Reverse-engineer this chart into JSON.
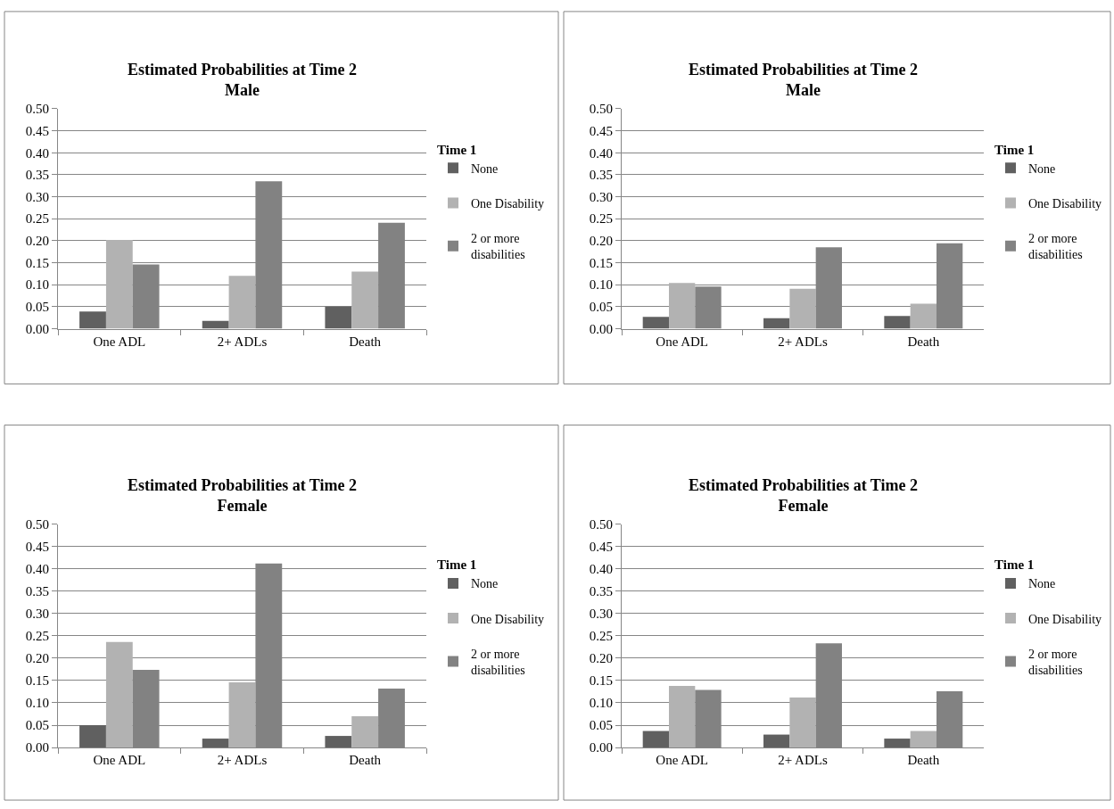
{
  "chart_data": [
    {
      "type": "bar",
      "title": "Estimated Probabilities at Time 2",
      "subtitle": "Male",
      "categories": [
        "One ADL",
        "2+ ADLs",
        "Death"
      ],
      "legend_title": "Time 1",
      "legend": "right",
      "grid": "y",
      "ylim": [
        0,
        0.5
      ],
      "yticks": [
        {
          "value": 0,
          "label": "0.00"
        },
        {
          "value": 0.05,
          "label": "0.05"
        },
        {
          "value": 0.1,
          "label": "0.10"
        },
        {
          "value": 0.15,
          "label": "0.15"
        },
        {
          "value": 0.2,
          "label": "0.20"
        },
        {
          "value": 0.25,
          "label": "0.25"
        },
        {
          "value": 0.3,
          "label": "0.30"
        },
        {
          "value": 0.35,
          "label": "0.35"
        },
        {
          "value": 0.4,
          "label": "0.40"
        },
        {
          "value": 0.45,
          "label": "0.45"
        },
        {
          "value": 0.5,
          "label": "0.50"
        }
      ],
      "series": [
        {
          "name": "None",
          "color": "#606060",
          "values": [
            0.039,
            0.018,
            0.05
          ]
        },
        {
          "name": "One Disability",
          "color": "#b2b2b2",
          "values": [
            0.202,
            0.12,
            0.13
          ]
        },
        {
          "name": "2 or more disabilities",
          "color": "#828282",
          "values": [
            0.146,
            0.335,
            0.241
          ]
        }
      ]
    },
    {
      "type": "bar",
      "title": "Estimated Probabilities at Time 2",
      "subtitle": "Male",
      "categories": [
        "One ADL",
        "2+ ADLs",
        "Death"
      ],
      "legend_title": "Time 1",
      "legend": "right",
      "grid": "y",
      "ylim": [
        0,
        0.5
      ],
      "yticks": [
        {
          "value": 0,
          "label": "0.00"
        },
        {
          "value": 0.05,
          "label": "0.05"
        },
        {
          "value": 0.1,
          "label": "0.10"
        },
        {
          "value": 0.15,
          "label": "0.15"
        },
        {
          "value": 0.2,
          "label": "0.20"
        },
        {
          "value": 0.25,
          "label": "0.25"
        },
        {
          "value": 0.3,
          "label": "0.30"
        },
        {
          "value": 0.35,
          "label": "0.35"
        },
        {
          "value": 0.4,
          "label": "0.40"
        },
        {
          "value": 0.45,
          "label": "0.45"
        },
        {
          "value": 0.5,
          "label": "0.50"
        }
      ],
      "series": [
        {
          "name": "None",
          "color": "#606060",
          "values": [
            0.027,
            0.024,
            0.029
          ]
        },
        {
          "name": "One Disability",
          "color": "#b2b2b2",
          "values": [
            0.104,
            0.091,
            0.057
          ]
        },
        {
          "name": "2 or more disabilities",
          "color": "#828282",
          "values": [
            0.096,
            0.185,
            0.194
          ]
        }
      ]
    },
    {
      "type": "bar",
      "title": "Estimated Probabilities at Time 2",
      "subtitle": "Female",
      "categories": [
        "One ADL",
        "2+ ADLs",
        "Death"
      ],
      "legend_title": "Time 1",
      "legend": "right",
      "grid": "y",
      "ylim": [
        0,
        0.5
      ],
      "yticks": [
        {
          "value": 0,
          "label": "0.00"
        },
        {
          "value": 0.05,
          "label": "0.05"
        },
        {
          "value": 0.1,
          "label": "0.10"
        },
        {
          "value": 0.15,
          "label": "0.15"
        },
        {
          "value": 0.2,
          "label": "0.20"
        },
        {
          "value": 0.25,
          "label": "0.25"
        },
        {
          "value": 0.3,
          "label": "0.30"
        },
        {
          "value": 0.35,
          "label": "0.35"
        },
        {
          "value": 0.4,
          "label": "0.40"
        },
        {
          "value": 0.45,
          "label": "0.45"
        },
        {
          "value": 0.5,
          "label": "0.50"
        }
      ],
      "series": [
        {
          "name": "None",
          "color": "#606060",
          "values": [
            0.05,
            0.02,
            0.026
          ]
        },
        {
          "name": "One Disability",
          "color": "#b2b2b2",
          "values": [
            0.236,
            0.146,
            0.07
          ]
        },
        {
          "name": "2 or more disabilities",
          "color": "#828282",
          "values": [
            0.174,
            0.412,
            0.132
          ]
        }
      ]
    },
    {
      "type": "bar",
      "title": "Estimated Probabilities at Time 2",
      "subtitle": "Female",
      "categories": [
        "One ADL",
        "2+ ADLs",
        "Death"
      ],
      "legend_title": "Time 1",
      "legend": "right",
      "grid": "y",
      "ylim": [
        0,
        0.5
      ],
      "yticks": [
        {
          "value": 0,
          "label": "0.00"
        },
        {
          "value": 0.05,
          "label": "0.05"
        },
        {
          "value": 0.1,
          "label": "0.10"
        },
        {
          "value": 0.15,
          "label": "0.15"
        },
        {
          "value": 0.2,
          "label": "0.20"
        },
        {
          "value": 0.25,
          "label": "0.25"
        },
        {
          "value": 0.3,
          "label": "0.30"
        },
        {
          "value": 0.35,
          "label": "0.35"
        },
        {
          "value": 0.4,
          "label": "0.40"
        },
        {
          "value": 0.45,
          "label": "0.45"
        },
        {
          "value": 0.5,
          "label": "0.50"
        }
      ],
      "series": [
        {
          "name": "None",
          "color": "#606060",
          "values": [
            0.037,
            0.029,
            0.02
          ]
        },
        {
          "name": "One Disability",
          "color": "#b2b2b2",
          "values": [
            0.138,
            0.112,
            0.037
          ]
        },
        {
          "name": "2 or more disabilities",
          "color": "#828282",
          "values": [
            0.129,
            0.233,
            0.126
          ]
        }
      ]
    }
  ]
}
